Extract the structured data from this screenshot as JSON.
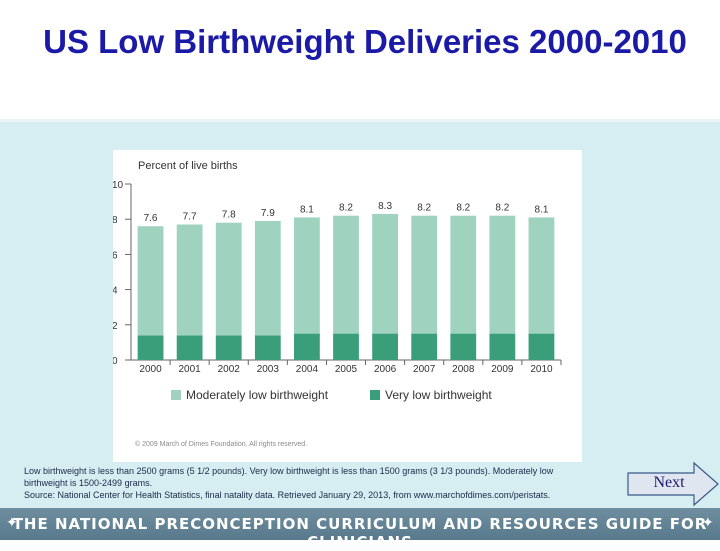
{
  "slide": {
    "title": "US Low Birthweight Deliveries 2000-2010"
  },
  "chart_data": {
    "type": "bar",
    "stacked": true,
    "title": "Percent of live births",
    "xlabel": "",
    "ylabel": "Percent of live births",
    "ylim": [
      0,
      10
    ],
    "yticks": [
      "0",
      "2",
      "4",
      "6",
      "8",
      "10"
    ],
    "categories": [
      "2000",
      "2001",
      "2002",
      "2003",
      "2004",
      "2005",
      "2006",
      "2007",
      "2008",
      "2009",
      "2010"
    ],
    "totals": [
      7.6,
      7.7,
      7.8,
      7.9,
      8.1,
      8.2,
      8.3,
      8.2,
      8.2,
      8.2,
      8.1
    ],
    "total_labels": [
      "7.6",
      "7.7",
      "7.8",
      "7.9",
      "8.1",
      "8.2",
      "8.3",
      "8.2",
      "8.2",
      "8.2",
      "8.1"
    ],
    "series": [
      {
        "name": "Very low birthweight",
        "color": "#3a9e7a",
        "values": [
          1.4,
          1.4,
          1.4,
          1.4,
          1.5,
          1.5,
          1.5,
          1.5,
          1.5,
          1.5,
          1.5
        ]
      },
      {
        "name": "Moderately low birthweight",
        "color": "#9fd3c0",
        "values": [
          6.2,
          6.3,
          6.4,
          6.5,
          6.6,
          6.7,
          6.8,
          6.7,
          6.7,
          6.7,
          6.6
        ]
      }
    ],
    "legend": [
      "Moderately low birthweight",
      "Very low birthweight"
    ],
    "copyright": "© 2009 March of Dimes Foundation. All rights reserved."
  },
  "footnote": {
    "line1": "Low birthweight is less than 2500 grams (5 1/2 pounds). Very low birthweight is less than 1500 grams (3 1/3 pounds). Moderately low",
    "line2": "birthweight is 1500-2499 grams.",
    "line3": "Source: National Center for Health Statistics, final natality data. Retrieved January 29, 2013, from www.marchofdimes.com/peristats."
  },
  "nav": {
    "next_label": "Next"
  },
  "footer": {
    "text": "THE NATIONAL PRECONCEPTION CURRICULUM AND RESOURCES GUIDE FOR CLINICIANS",
    "star": "✦"
  },
  "colors": {
    "title": "#1a1aa6",
    "moderate": "#9fd3c0",
    "very_low": "#3a9e7a",
    "background": "#d6edf1",
    "footer": "#5f8194"
  }
}
